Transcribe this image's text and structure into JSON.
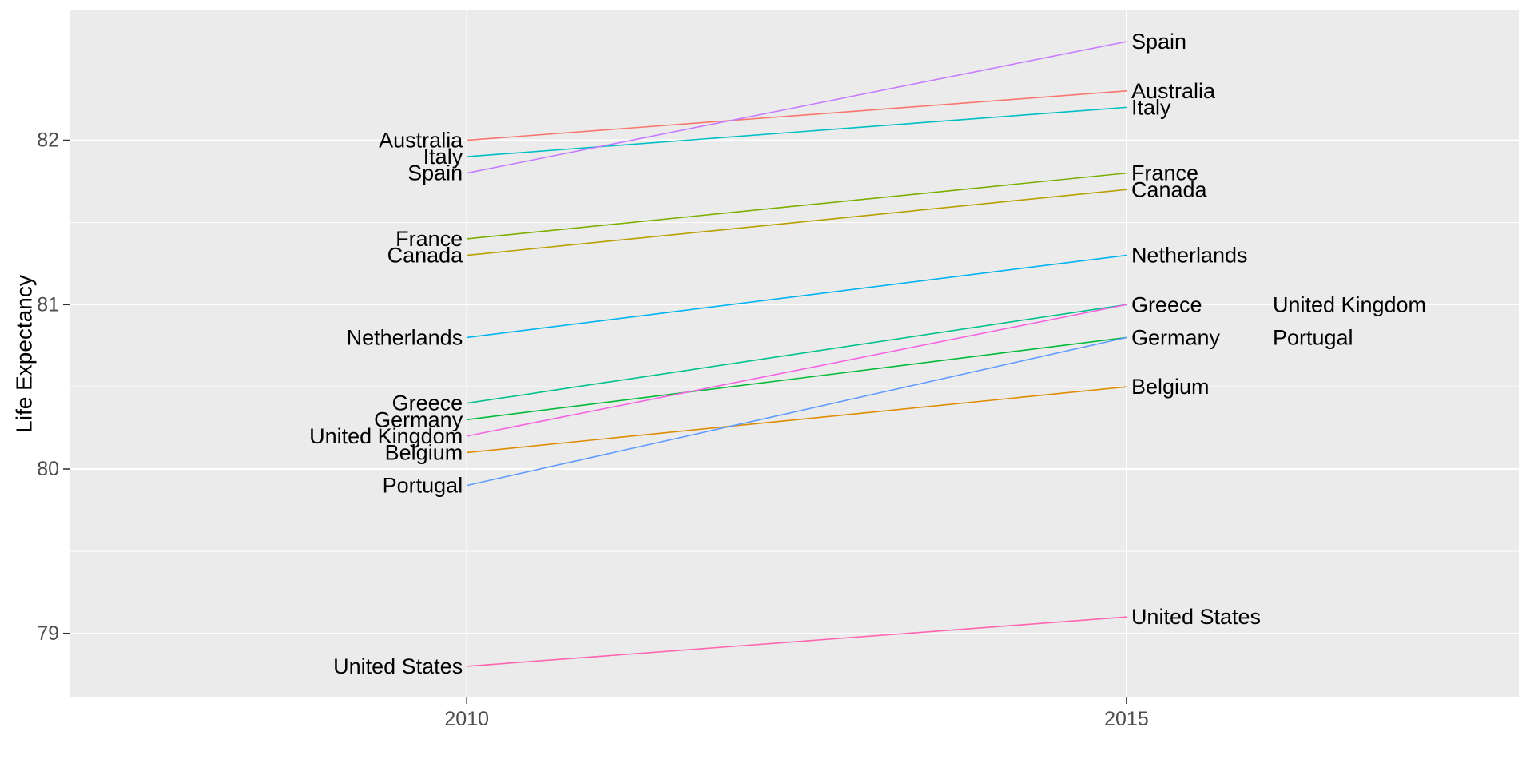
{
  "chart_data": {
    "type": "line",
    "subtype": "slopegraph",
    "title": "",
    "xlabel": "",
    "ylabel": "Life Expectancy",
    "x_categories": [
      "2010",
      "2015"
    ],
    "y_tick_labels": [
      "79",
      "80",
      "81",
      "82"
    ],
    "y_tick_values": [
      79,
      80,
      81,
      82
    ],
    "y_minor_tick_values": [
      79.5,
      80.5,
      81.5,
      82.5
    ],
    "ylim": [
      78.61,
      82.79
    ],
    "grid": "white major+minor horizontal, white vertical at each year, gray panel",
    "legend_position": "none (direct country labels at both line ends)",
    "series": [
      {
        "name": "Australia",
        "values": [
          82.0,
          82.3
        ],
        "color": "#F8766D",
        "right_label_column": 1
      },
      {
        "name": "Belgium",
        "values": [
          80.1,
          80.5
        ],
        "color": "#DE8C00",
        "right_label_column": 1
      },
      {
        "name": "Canada",
        "values": [
          81.3,
          81.7
        ],
        "color": "#B79F00",
        "right_label_column": 1
      },
      {
        "name": "France",
        "values": [
          81.4,
          81.8
        ],
        "color": "#7CAE00",
        "right_label_column": 1
      },
      {
        "name": "Germany",
        "values": [
          80.3,
          80.8
        ],
        "color": "#00BA38",
        "right_label_column": 1
      },
      {
        "name": "Greece",
        "values": [
          80.4,
          81.0
        ],
        "color": "#00C08B",
        "right_label_column": 1
      },
      {
        "name": "Italy",
        "values": [
          81.9,
          82.2
        ],
        "color": "#00BFC4",
        "right_label_column": 1
      },
      {
        "name": "Netherlands",
        "values": [
          80.8,
          81.3
        ],
        "color": "#00B4F0",
        "right_label_column": 1
      },
      {
        "name": "Portugal",
        "values": [
          79.9,
          80.8
        ],
        "color": "#619CFF",
        "right_label_column": 2
      },
      {
        "name": "Spain",
        "values": [
          81.8,
          82.6
        ],
        "color": "#C77CFF",
        "right_label_column": 1
      },
      {
        "name": "United Kingdom",
        "values": [
          80.2,
          81.0
        ],
        "color": "#F564E3",
        "right_label_column": 2
      },
      {
        "name": "United States",
        "values": [
          78.8,
          79.1
        ],
        "color": "#FF64B0",
        "right_label_column": 1
      }
    ],
    "colors": {
      "panel_bg": "#EBEBEB",
      "grid": "#FFFFFF",
      "tick_text": "#4D4D4D",
      "tick_mark": "#333333",
      "label_text": "#000000"
    }
  }
}
